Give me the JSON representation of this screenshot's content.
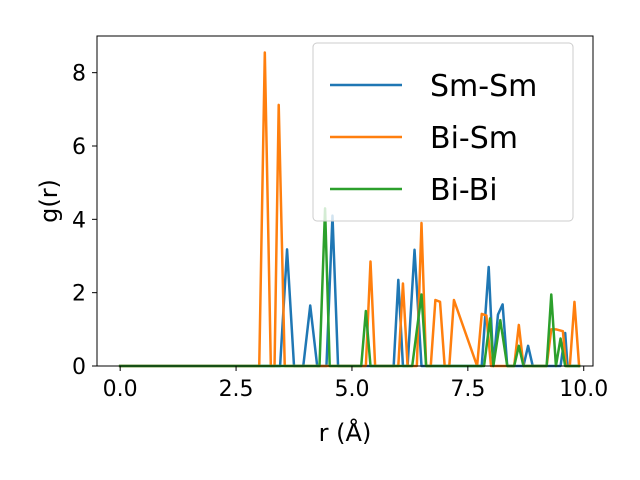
{
  "chart_data": {
    "type": "line",
    "xlabel": "r (Å)",
    "ylabel": "g(r)",
    "xlim": [
      -0.5,
      10.2
    ],
    "ylim": [
      0,
      9
    ],
    "xticks": [
      0.0,
      2.5,
      5.0,
      7.5,
      10.0
    ],
    "xtick_labels": [
      "0.0",
      "2.5",
      "5.0",
      "7.5",
      "10.0"
    ],
    "yticks": [
      0,
      2,
      4,
      6,
      8
    ],
    "ytick_labels": [
      "0",
      "2",
      "4",
      "6",
      "8"
    ],
    "grid": false,
    "legend_position": "top-right",
    "series": [
      {
        "name": "Sm-Sm",
        "color": "#1f77b4",
        "x": [
          0.0,
          3.45,
          3.6,
          3.75,
          3.95,
          4.1,
          4.25,
          4.45,
          4.58,
          4.7,
          5.9,
          6.0,
          6.1,
          6.2,
          6.35,
          6.5,
          7.8,
          7.95,
          8.05,
          8.15,
          8.25,
          8.35,
          8.7,
          8.8,
          8.9,
          9.5,
          9.6,
          9.65,
          9.9
        ],
        "y": [
          0.0,
          0.0,
          3.18,
          0.0,
          0.0,
          1.65,
          0.0,
          0.0,
          4.1,
          0.0,
          0.0,
          2.35,
          0.0,
          0.0,
          3.17,
          0.0,
          0.0,
          2.7,
          0.0,
          1.4,
          1.68,
          0.0,
          0.0,
          0.55,
          0.0,
          0.0,
          0.9,
          0.0,
          0.0
        ]
      },
      {
        "name": "Bi-Sm",
        "color": "#ff7f0e",
        "x": [
          0.0,
          3.0,
          3.12,
          3.25,
          3.33,
          3.42,
          3.55,
          5.3,
          5.4,
          5.5,
          6.0,
          6.1,
          6.2,
          6.4,
          6.5,
          6.6,
          6.7,
          6.8,
          6.9,
          7.0,
          7.1,
          7.2,
          7.7,
          7.8,
          7.9,
          8.0,
          8.5,
          8.6,
          8.7,
          9.2,
          9.3,
          9.4,
          9.55,
          9.62,
          9.7,
          9.8,
          9.9
        ],
        "y": [
          0.0,
          0.0,
          8.55,
          0.0,
          0.0,
          7.12,
          0.0,
          0.0,
          2.85,
          0.0,
          0.0,
          2.25,
          0.0,
          0.0,
          3.9,
          0.0,
          0.0,
          1.8,
          1.75,
          0.0,
          0.0,
          1.8,
          0.0,
          1.42,
          1.38,
          0.0,
          0.0,
          1.12,
          0.0,
          0.0,
          1.0,
          1.0,
          0.95,
          0.0,
          0.0,
          1.75,
          0.0
        ]
      },
      {
        "name": "Bi-Bi",
        "color": "#2ca02c",
        "x": [
          0.0,
          4.3,
          4.42,
          4.52,
          5.2,
          5.3,
          5.4,
          6.3,
          6.5,
          6.6,
          7.85,
          7.98,
          8.05,
          8.2,
          8.35,
          8.5,
          8.6,
          8.7,
          9.2,
          9.3,
          9.4,
          9.5,
          9.6,
          9.9
        ],
        "y": [
          0.0,
          0.0,
          4.3,
          0.0,
          0.0,
          1.5,
          0.0,
          0.0,
          1.95,
          0.0,
          0.0,
          1.3,
          0.0,
          1.25,
          0.0,
          0.0,
          0.55,
          0.0,
          0.0,
          1.95,
          0.0,
          0.75,
          0.0,
          0.0
        ]
      }
    ]
  }
}
